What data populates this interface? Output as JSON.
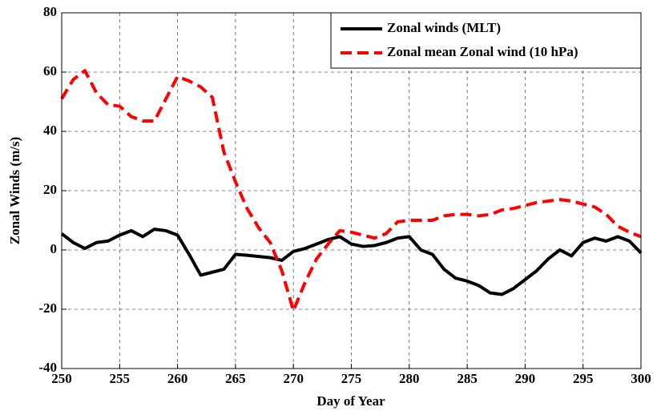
{
  "chart_data": {
    "type": "line",
    "x_label": "Day of Year",
    "y_label": "Zonal Winds (m/s)",
    "x": [
      250,
      251,
      252,
      253,
      254,
      255,
      256,
      257,
      258,
      259,
      260,
      261,
      262,
      263,
      264,
      265,
      266,
      267,
      268,
      269,
      270,
      271,
      272,
      273,
      274,
      275,
      276,
      277,
      278,
      279,
      280,
      281,
      282,
      283,
      284,
      285,
      286,
      287,
      288,
      289,
      290,
      291,
      292,
      293,
      294,
      295,
      296,
      297,
      298,
      299,
      300
    ],
    "series": [
      {
        "name": "Zonal winds (MLT)",
        "color": "#000000",
        "dash": false,
        "values": [
          5.5,
          2.5,
          0.5,
          2.5,
          3,
          5,
          6.5,
          4.5,
          7,
          6.5,
          5,
          -1.5,
          -8.5,
          -7.5,
          -6.5,
          -1.5,
          -1.8,
          -2.2,
          -2.6,
          -3.5,
          -0.5,
          0.5,
          2,
          3.5,
          4.5,
          2,
          1.2,
          1.5,
          2.5,
          4,
          4.5,
          0,
          -1.5,
          -6.5,
          -9.5,
          -10.5,
          -12,
          -14.5,
          -15,
          -13,
          -10,
          -7,
          -3,
          0,
          -2,
          2.5,
          4,
          3,
          4.5,
          3,
          -1
        ]
      },
      {
        "name": "Zonal mean Zonal wind (10 hPa)",
        "color": "#ff0000",
        "dash": true,
        "values": [
          51,
          57.5,
          60.5,
          53,
          49,
          48.5,
          45,
          43.5,
          43.5,
          51,
          58.5,
          57,
          55,
          51.5,
          33,
          23,
          14,
          7.5,
          2.5,
          -7,
          -20.5,
          -11,
          -3,
          2,
          6.5,
          6,
          5,
          4,
          5.5,
          9.5,
          10,
          10,
          10,
          11.5,
          12,
          12,
          11.5,
          12,
          13.5,
          14,
          15,
          16,
          16.5,
          17,
          16.5,
          15.5,
          14.5,
          12,
          8,
          6,
          4.5
        ]
      }
    ],
    "xlim": [
      250,
      300
    ],
    "xticks": [
      250,
      255,
      260,
      265,
      270,
      275,
      280,
      285,
      290,
      295,
      300
    ],
    "ylim": [
      -40,
      80
    ],
    "yticks": [
      -40,
      -20,
      0,
      20,
      40,
      60,
      80
    ],
    "grid": true,
    "legend": "upper right"
  }
}
